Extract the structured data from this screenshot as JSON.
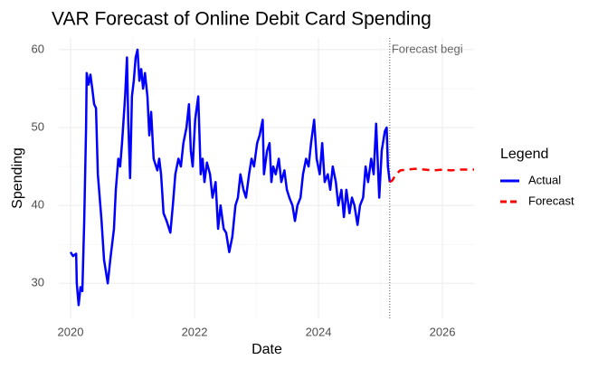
{
  "chart_data": {
    "type": "line",
    "title": "VAR Forecast of Online Debit Card Spending",
    "x_label": "Date",
    "y_label": "Spending",
    "legend_title": "Legend",
    "legend_position": "right",
    "annotation": {
      "text": "Forecast begi",
      "x": 2025.15
    },
    "xlim": [
      2019.81,
      2026.51
    ],
    "ylim": [
      25.5,
      61.5
    ],
    "xticks": [
      2020,
      2022,
      2024,
      2026
    ],
    "yticks": [
      30,
      40,
      50,
      60
    ],
    "grid": true,
    "minor_grid": true,
    "series": [
      {
        "name": "Actual",
        "color": "#0000ff",
        "dash": false,
        "x": [
          2020.0,
          2020.04,
          2020.09,
          2020.1,
          2020.13,
          2020.16,
          2020.19,
          2020.22,
          2020.25,
          2020.26,
          2020.29,
          2020.32,
          2020.35,
          2020.38,
          2020.41,
          2020.44,
          2020.5,
          2020.54,
          2020.6,
          2020.64,
          2020.7,
          2020.73,
          2020.77,
          2020.8,
          2020.83,
          2020.88,
          2020.91,
          2020.93,
          2020.96,
          2020.99,
          2021.02,
          2021.05,
          2021.08,
          2021.11,
          2021.14,
          2021.17,
          2021.2,
          2021.24,
          2021.27,
          2021.3,
          2021.34,
          2021.4,
          2021.43,
          2021.46,
          2021.5,
          2021.55,
          2021.61,
          2021.65,
          2021.69,
          2021.74,
          2021.78,
          2021.82,
          2021.87,
          2021.91,
          2021.94,
          2021.97,
          2022.01,
          2022.06,
          2022.1,
          2022.13,
          2022.16,
          2022.2,
          2022.25,
          2022.29,
          2022.34,
          2022.38,
          2022.42,
          2022.47,
          2022.51,
          2022.56,
          2022.61,
          2022.66,
          2022.7,
          2022.74,
          2022.79,
          2022.83,
          2022.88,
          2022.92,
          2022.96,
          2023.01,
          2023.05,
          2023.1,
          2023.12,
          2023.17,
          2023.21,
          2023.24,
          2023.27,
          2023.31,
          2023.36,
          2023.4,
          2023.45,
          2023.49,
          2023.53,
          2023.58,
          2023.62,
          2023.66,
          2023.71,
          2023.75,
          2023.8,
          2023.84,
          2023.88,
          2023.93,
          2023.97,
          2024.02,
          2024.06,
          2024.1,
          2024.15,
          2024.19,
          2024.23,
          2024.28,
          2024.32,
          2024.37,
          2024.41,
          2024.45,
          2024.5,
          2024.54,
          2024.58,
          2024.63,
          2024.67,
          2024.72,
          2024.76,
          2024.8,
          2024.85,
          2024.89,
          2024.93,
          2024.98,
          2025.02,
          2025.07,
          2025.1,
          2025.12,
          2025.15
        ],
        "values": [
          34,
          33.5,
          33.8,
          30,
          27.2,
          29.5,
          29,
          38,
          50,
          57,
          55.5,
          56.8,
          55,
          53,
          52.5,
          44,
          38,
          33,
          30,
          33,
          37,
          42,
          46,
          45,
          48,
          54,
          59,
          51,
          43.5,
          54,
          56,
          59,
          60,
          56,
          57.5,
          55,
          57,
          54,
          49,
          52,
          46,
          44.5,
          46,
          44,
          39,
          38,
          36.5,
          40,
          44,
          46,
          45,
          48,
          50,
          53,
          47,
          45,
          51,
          54,
          44,
          46,
          43,
          45.5,
          44,
          41,
          43,
          37,
          40,
          37,
          36.5,
          34,
          36,
          40,
          41,
          44,
          42,
          41,
          44,
          46,
          45,
          48,
          49,
          51,
          44,
          47,
          48,
          43,
          45,
          44,
          46,
          43,
          44.5,
          42,
          41,
          40,
          38,
          40,
          41,
          44,
          46,
          45,
          48,
          51,
          46,
          44,
          48,
          43,
          44,
          42,
          45,
          43,
          40,
          42,
          38.5,
          42,
          39,
          41,
          40,
          37.5,
          40,
          41,
          45,
          43,
          46,
          44,
          50.5,
          41,
          47,
          49.5,
          50,
          45,
          43
        ]
      },
      {
        "name": "Forecast",
        "color": "#ff0000",
        "dash": true,
        "x": [
          2025.15,
          2025.19,
          2025.25,
          2025.32,
          2025.42,
          2025.56,
          2025.71,
          2025.85,
          2026.0,
          2026.14,
          2026.29,
          2026.51
        ],
        "values": [
          43,
          43.2,
          44,
          44.5,
          44.6,
          44.7,
          44.6,
          44.5,
          44.6,
          44.5,
          44.6,
          44.6
        ]
      }
    ]
  }
}
